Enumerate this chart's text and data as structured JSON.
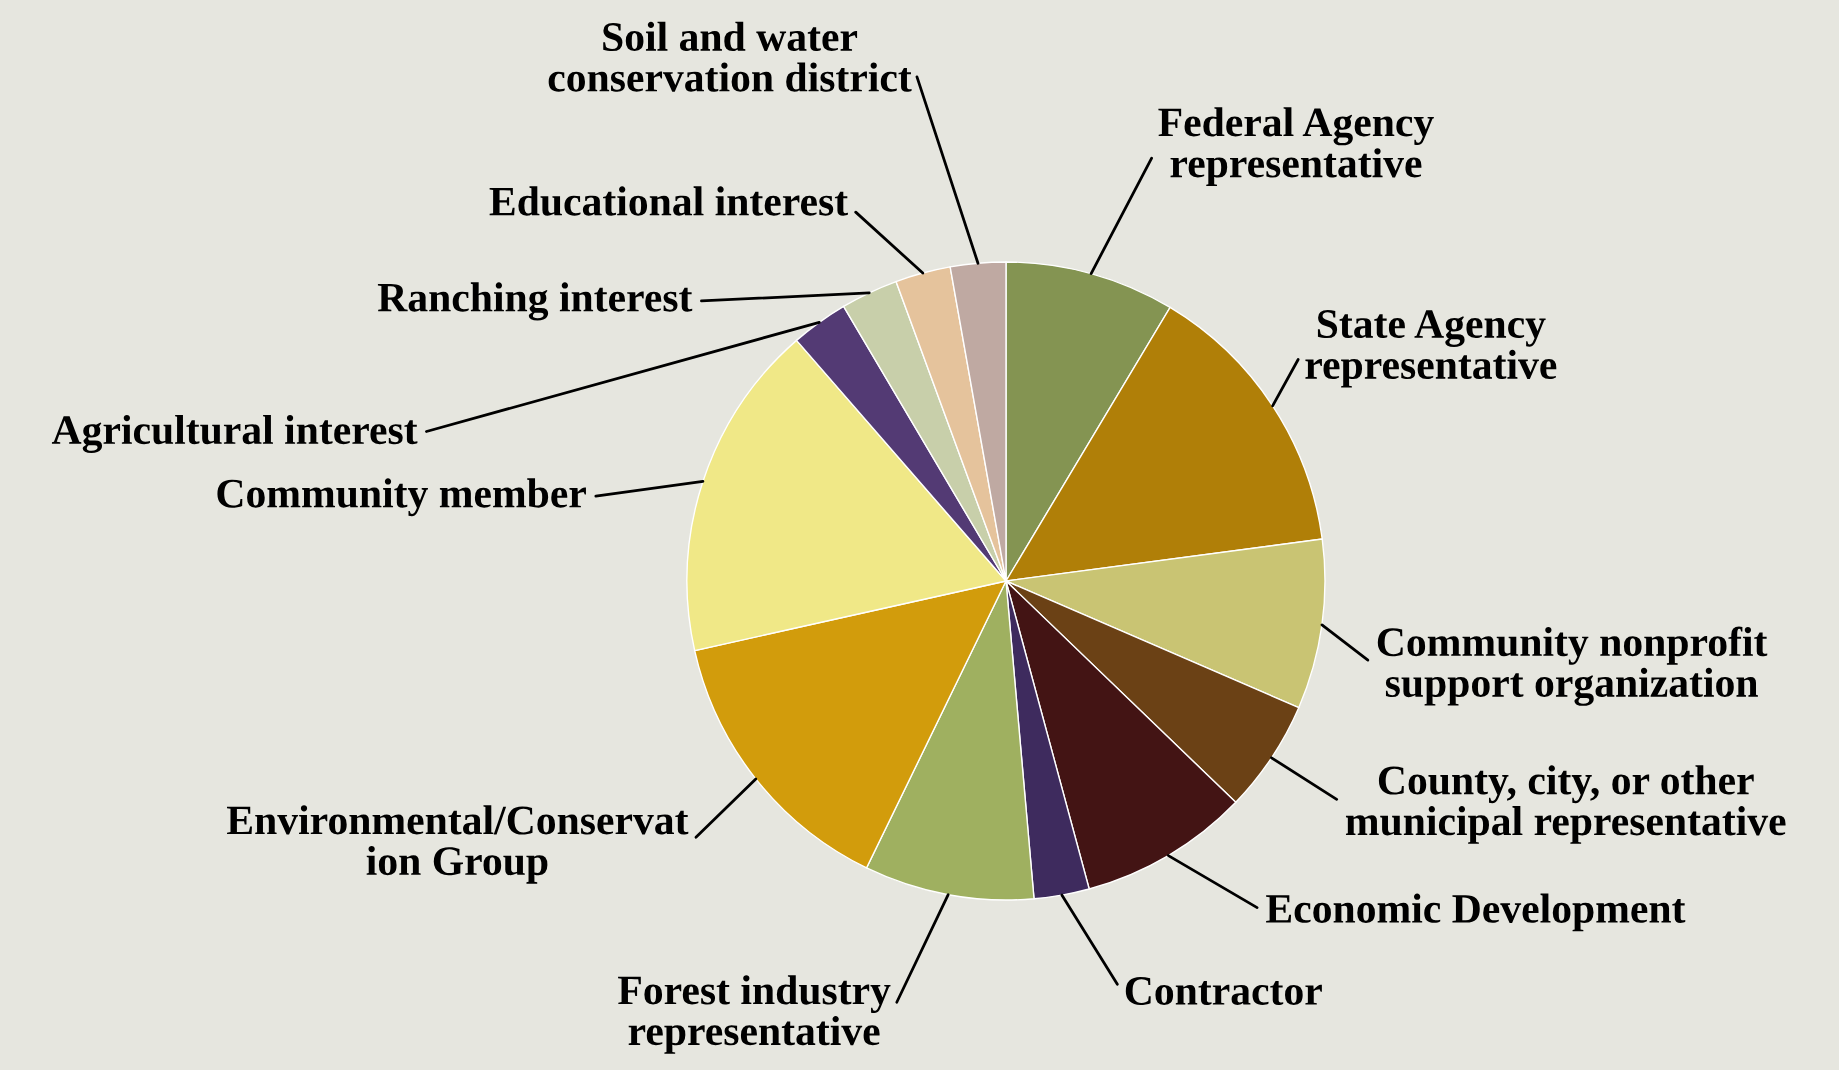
{
  "chart_data": {
    "type": "pie",
    "categories": [
      "Federal Agency\nrepresentative",
      "State Agency\nrepresentative",
      "Community nonprofit\nsupport organization",
      "County, city, or other\nmunicipal representative",
      "Economic Development",
      "Contractor",
      "Forest industry\nrepresentative",
      "Environmental/Conservat\nion Group",
      "Community member",
      "Agricultural interest",
      "Ranching interest",
      "Educational interest",
      "Soil and water\nconservation district"
    ],
    "values": [
      8.6,
      14.3,
      8.6,
      5.7,
      8.6,
      2.8,
      8.6,
      14.3,
      17.1,
      2.9,
      2.9,
      2.8,
      2.8
    ],
    "colors": [
      "#849452",
      "#b07f08",
      "#c9c473",
      "#6b4115",
      "#431414",
      "#3e2b5e",
      "#9fb060",
      "#d29c0c",
      "#f0e887",
      "#533a74",
      "#c8cfaa",
      "#e5c39c",
      "#bfa9a2"
    ]
  }
}
